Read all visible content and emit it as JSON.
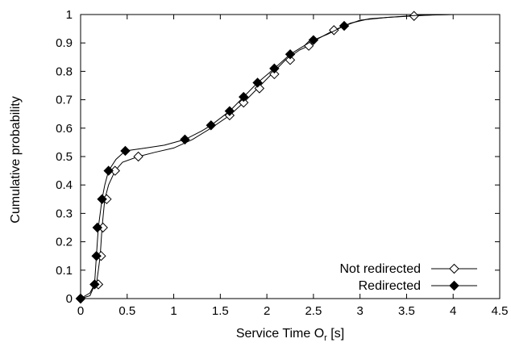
{
  "chart_data": {
    "type": "line",
    "xlabel": "Service Time O",
    "xlabel_sub": "r",
    "xlabel_unit": " [s]",
    "ylabel": "Cumulative probability",
    "xlim": [
      0,
      4.5
    ],
    "ylim": [
      0,
      1
    ],
    "xticks": [
      "0",
      "0.5",
      "1",
      "1.5",
      "2",
      "2.5",
      "3",
      "3.5",
      "4",
      "4.5"
    ],
    "yticks": [
      "0",
      "0.1",
      "0.2",
      "0.3",
      "0.4",
      "0.5",
      "0.6",
      "0.7",
      "0.8",
      "0.9",
      "1"
    ],
    "grid": false,
    "legend_position": "bottom-right",
    "series": [
      {
        "name": "Not redirected",
        "marker": "open-diamond",
        "curve": [
          [
            0,
            0
          ],
          [
            0.1,
            0.01
          ],
          [
            0.14,
            0.04
          ],
          [
            0.17,
            0.05
          ],
          [
            0.19,
            0.1
          ],
          [
            0.21,
            0.15
          ],
          [
            0.23,
            0.25
          ],
          [
            0.26,
            0.35
          ],
          [
            0.3,
            0.4
          ],
          [
            0.37,
            0.45
          ],
          [
            0.45,
            0.48
          ],
          [
            0.62,
            0.5
          ],
          [
            0.8,
            0.515
          ],
          [
            1.0,
            0.53
          ],
          [
            1.2,
            0.56
          ],
          [
            1.4,
            0.6
          ],
          [
            1.6,
            0.645
          ],
          [
            1.75,
            0.69
          ],
          [
            1.9,
            0.74
          ],
          [
            2.05,
            0.79
          ],
          [
            2.2,
            0.84
          ],
          [
            2.35,
            0.875
          ],
          [
            2.45,
            0.89
          ],
          [
            2.55,
            0.915
          ],
          [
            2.72,
            0.945
          ],
          [
            2.9,
            0.97
          ],
          [
            3.1,
            0.985
          ],
          [
            3.3,
            0.99
          ],
          [
            3.58,
            0.995
          ],
          [
            3.8,
            0.999
          ],
          [
            4.0,
            1.0
          ]
        ],
        "markers": [
          [
            0,
            0
          ],
          [
            0.19,
            0.05
          ],
          [
            0.22,
            0.15
          ],
          [
            0.24,
            0.25
          ],
          [
            0.28,
            0.35
          ],
          [
            0.37,
            0.45
          ],
          [
            0.62,
            0.5
          ],
          [
            1.6,
            0.645
          ],
          [
            1.75,
            0.69
          ],
          [
            1.92,
            0.74
          ],
          [
            2.08,
            0.79
          ],
          [
            2.25,
            0.84
          ],
          [
            2.45,
            0.89
          ],
          [
            2.72,
            0.945
          ],
          [
            3.58,
            0.995
          ]
        ]
      },
      {
        "name": "Redirected",
        "marker": "filled-diamond",
        "curve": [
          [
            0,
            0
          ],
          [
            0.1,
            0.02
          ],
          [
            0.15,
            0.05
          ],
          [
            0.17,
            0.15
          ],
          [
            0.19,
            0.25
          ],
          [
            0.21,
            0.3
          ],
          [
            0.23,
            0.35
          ],
          [
            0.26,
            0.4
          ],
          [
            0.3,
            0.45
          ],
          [
            0.38,
            0.49
          ],
          [
            0.48,
            0.52
          ],
          [
            0.7,
            0.53
          ],
          [
            0.9,
            0.54
          ],
          [
            1.12,
            0.56
          ],
          [
            1.3,
            0.59
          ],
          [
            1.4,
            0.61
          ],
          [
            1.6,
            0.66
          ],
          [
            1.75,
            0.71
          ],
          [
            1.9,
            0.76
          ],
          [
            2.08,
            0.81
          ],
          [
            2.25,
            0.86
          ],
          [
            2.4,
            0.89
          ],
          [
            2.5,
            0.91
          ],
          [
            2.65,
            0.93
          ],
          [
            2.83,
            0.96
          ],
          [
            3.0,
            0.98
          ],
          [
            3.3,
            0.99
          ],
          [
            3.6,
            0.997
          ],
          [
            4.0,
            1.0
          ]
        ],
        "markers": [
          [
            0,
            0
          ],
          [
            0.15,
            0.05
          ],
          [
            0.17,
            0.15
          ],
          [
            0.18,
            0.25
          ],
          [
            0.23,
            0.35
          ],
          [
            0.3,
            0.45
          ],
          [
            0.48,
            0.52
          ],
          [
            1.12,
            0.56
          ],
          [
            1.4,
            0.61
          ],
          [
            1.6,
            0.66
          ],
          [
            1.75,
            0.71
          ],
          [
            1.9,
            0.76
          ],
          [
            2.08,
            0.81
          ],
          [
            2.25,
            0.86
          ],
          [
            2.5,
            0.91
          ],
          [
            2.83,
            0.96
          ]
        ]
      }
    ]
  }
}
